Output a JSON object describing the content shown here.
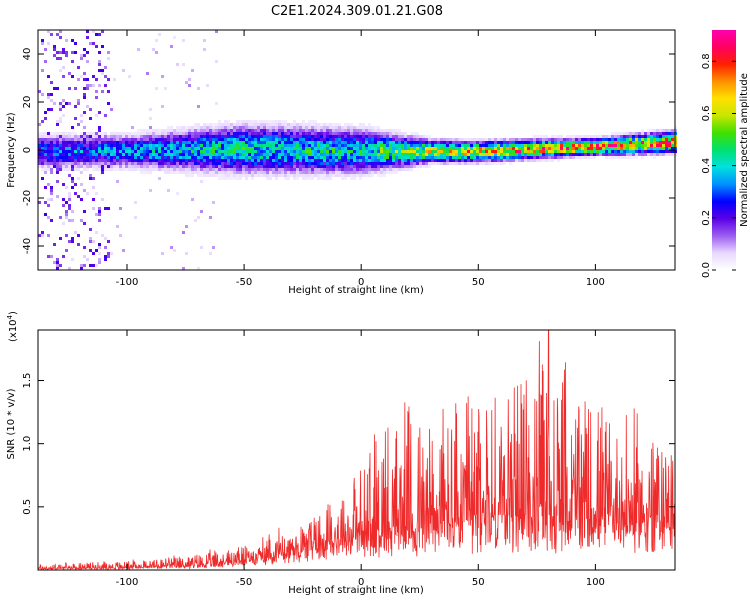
{
  "title": "C2E1.2024.309.01.21.G08",
  "chart_data": [
    {
      "type": "heatmap",
      "xlabel": "Height of straight line (km)",
      "ylabel": "Frequency (Hz)",
      "xlim": [
        -138,
        134
      ],
      "ylim": [
        -50,
        50
      ],
      "xticks": [
        -100,
        -50,
        0,
        50,
        100
      ],
      "yticks": [
        -40,
        -20,
        0,
        20,
        40
      ],
      "colorbar": {
        "label": "Normalized spectral amplitude",
        "range": [
          0,
          0.92
        ],
        "ticks": [
          0.0,
          0.2,
          0.4,
          0.6,
          0.8
        ],
        "colormap": [
          "#ffffff",
          "#e8d8ff",
          "#9b5cf0",
          "#5a00e6",
          "#0000ff",
          "#0090ff",
          "#00e0e0",
          "#00e070",
          "#40e000",
          "#c8e600",
          "#ffe000",
          "#ff9000",
          "#ff2000",
          "#ff0060",
          "#ff00b0"
        ]
      },
      "main_band": {
        "center_frequency_hz": [
          [
            -138,
            0
          ],
          [
            -100,
            0
          ],
          [
            -50,
            1
          ],
          [
            0,
            0
          ],
          [
            50,
            0
          ],
          [
            100,
            2
          ],
          [
            134,
            4
          ]
        ],
        "half_width_hz": [
          [
            -138,
            6
          ],
          [
            -100,
            6
          ],
          [
            -50,
            9
          ],
          [
            0,
            8
          ],
          [
            30,
            4
          ],
          [
            100,
            3
          ],
          [
            134,
            4
          ]
        ],
        "peak_amplitude": [
          [
            -138,
            0.35
          ],
          [
            -100,
            0.4
          ],
          [
            -50,
            0.5
          ],
          [
            0,
            0.5
          ],
          [
            30,
            0.7
          ],
          [
            60,
            0.85
          ],
          [
            134,
            0.88
          ]
        ]
      }
    },
    {
      "type": "line",
      "xlabel": "Height of straight line (km)",
      "ylabel": "SNR (10 * v/v)",
      "y_multiplier_label": "(x10",
      "y_multiplier_exponent": "4",
      "xlim": [
        -138,
        134
      ],
      "ylim": [
        0,
        1.9
      ],
      "xticks": [
        -100,
        -50,
        0,
        50,
        100
      ],
      "yticks": [
        0.5,
        1.0,
        1.5
      ],
      "ytick_labels": [
        "0.5",
        "1.0",
        "1.5"
      ],
      "series": [
        {
          "color": "#ee2a2a",
          "baseline_envelope": [
            [
              -138,
              0.01
            ],
            [
              -100,
              0.02
            ],
            [
              -70,
              0.04
            ],
            [
              -50,
              0.08
            ],
            [
              -30,
              0.18
            ],
            [
              -10,
              0.25
            ],
            [
              10,
              0.3
            ],
            [
              30,
              0.35
            ],
            [
              60,
              0.4
            ],
            [
              80,
              0.42
            ],
            [
              100,
              0.4
            ],
            [
              134,
              0.42
            ]
          ],
          "peak_envelope": [
            [
              -138,
              0.05
            ],
            [
              -100,
              0.08
            ],
            [
              -70,
              0.14
            ],
            [
              -50,
              0.22
            ],
            [
              -30,
              0.38
            ],
            [
              -20,
              0.55
            ],
            [
              0,
              0.9
            ],
            [
              10,
              1.35
            ],
            [
              30,
              1.4
            ],
            [
              50,
              1.5
            ],
            [
              60,
              1.65
            ],
            [
              70,
              1.7
            ],
            [
              80,
              1.9
            ],
            [
              90,
              1.6
            ],
            [
              100,
              1.4
            ],
            [
              115,
              1.3
            ],
            [
              134,
              1.1
            ]
          ],
          "max_point": [
            80,
            1.9
          ]
        }
      ]
    }
  ]
}
